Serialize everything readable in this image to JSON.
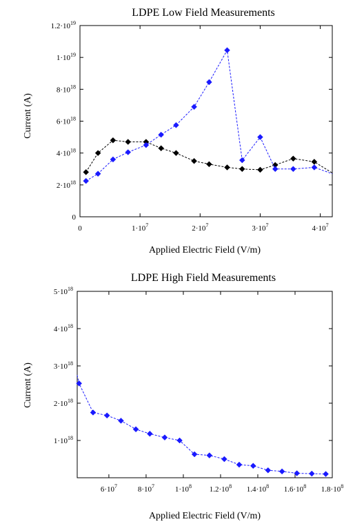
{
  "colors": {
    "black_series": "#000000",
    "blue_series": "#1a1aff"
  },
  "chart_data": [
    {
      "type": "scatter",
      "title": "LDPE Low Field Measurements",
      "xlabel": "Applied Electric Field (V/m)",
      "ylabel": "Current (A)",
      "xlim": [
        0,
        42000000
      ],
      "ylim": [
        0,
        12000000000000000000
      ],
      "marker": "diamond",
      "line_style": "dashed",
      "x_ticks": [
        {
          "value": 0,
          "mant": "0",
          "exp": ""
        },
        {
          "value": 10000000,
          "mant": "1·10",
          "exp": "7"
        },
        {
          "value": 20000000,
          "mant": "2·10",
          "exp": "7"
        },
        {
          "value": 30000000,
          "mant": "3·10",
          "exp": "7"
        },
        {
          "value": 40000000,
          "mant": "4·10",
          "exp": "7"
        }
      ],
      "y_ticks": [
        {
          "value": 0,
          "mant": "0",
          "exp": ""
        },
        {
          "value": 2000000000000000000,
          "mant": "2·10",
          "exp": "18"
        },
        {
          "value": 4000000000000000000,
          "mant": "4·10",
          "exp": "18"
        },
        {
          "value": 6000000000000000000,
          "mant": "6·10",
          "exp": "18"
        },
        {
          "value": 8000000000000000000,
          "mant": "8·10",
          "exp": "18"
        },
        {
          "value": 10000000000000000000,
          "mant": "1·10",
          "exp": "19"
        },
        {
          "value": 12000000000000000000,
          "mant": "1.2·10",
          "exp": "19"
        }
      ],
      "series": [
        {
          "color": "#000000",
          "x": [
            1000000,
            3000000,
            5500000,
            8000000,
            11000000,
            13500000,
            16000000,
            19000000,
            21500000,
            24500000,
            27000000,
            30000000,
            32500000,
            35500000,
            39000000,
            42000000
          ],
          "y": [
            2800000000000000000,
            4000000000000000000,
            4800000000000000000,
            4700000000000000000,
            4700000000000000000,
            4300000000000000000,
            4000000000000000000,
            3500000000000000000,
            3300000000000000000,
            3100000000000000000,
            3000000000000000000,
            2950000000000000000,
            3250000000000000000,
            3650000000000000000,
            3450000000000000000,
            2750000000000000000
          ]
        },
        {
          "color": "#1a1aff",
          "x": [
            1000000,
            3000000,
            5500000,
            8000000,
            11000000,
            13500000,
            16000000,
            19000000,
            21500000,
            24500000,
            27000000,
            30000000,
            32500000,
            35500000,
            39000000,
            42000000
          ],
          "y": [
            2250000000000000000,
            2700000000000000000,
            3600000000000000000,
            4050000000000000000,
            4500000000000000000,
            5150000000000000000,
            5750000000000000000,
            6900000000000000000,
            8450000000000000000,
            10450000000000000000,
            3550000000000000000,
            5000000000000000000,
            3000000000000000000,
            3000000000000000000,
            3100000000000000000,
            2700000000000000000
          ]
        }
      ]
    },
    {
      "type": "scatter",
      "title": "LDPE High Field Measurements",
      "xlabel": "Applied Electric Field (V/m)",
      "ylabel": "Current (A)",
      "xlim": [
        43000000,
        180000000
      ],
      "ylim": [
        0,
        5000000000000000000
      ],
      "marker": "diamond",
      "line_style": "dashed",
      "x_ticks": [
        {
          "value": 60000000,
          "mant": "6·10",
          "exp": "7"
        },
        {
          "value": 80000000,
          "mant": "8·10",
          "exp": "7"
        },
        {
          "value": 100000000,
          "mant": "1·10",
          "exp": "8"
        },
        {
          "value": 120000000,
          "mant": "1.2·10",
          "exp": "8"
        },
        {
          "value": 140000000,
          "mant": "1.4·10",
          "exp": "8"
        },
        {
          "value": 160000000,
          "mant": "1.6·10",
          "exp": "8"
        },
        {
          "value": 180000000,
          "mant": "1.8·10",
          "exp": "8"
        }
      ],
      "y_ticks": [
        {
          "value": 1000000000000000000,
          "mant": "1·10",
          "exp": "18"
        },
        {
          "value": 2000000000000000000,
          "mant": "2·10",
          "exp": "18"
        },
        {
          "value": 3000000000000000000,
          "mant": "3·10",
          "exp": "18"
        },
        {
          "value": 4000000000000000000,
          "mant": "4·10",
          "exp": "18"
        },
        {
          "value": 5000000000000000000,
          "mant": "5·10",
          "exp": "18"
        }
      ],
      "series": [
        {
          "color": "#1a1aff",
          "x": [
            43000000,
            44000000,
            51500000,
            59000000,
            66500000,
            74500000,
            82000000,
            90000000,
            98000000,
            106000000,
            114000000,
            122000000,
            130000000,
            137500000,
            145500000,
            153000000,
            161000000,
            169000000,
            176500000
          ],
          "y": [
            2750000000000000000,
            2530000000000000000,
            1750000000000000000,
            1670000000000000000,
            1530000000000000000,
            1300000000000000000,
            1180000000000000000,
            1080000000000000000,
            1000000000000000000,
            630000000000000000,
            600000000000000000,
            500000000000000000,
            350000000000000000,
            320000000000000000,
            200000000000000000,
            170000000000000000,
            120000000000000000,
            110000000000000000,
            100000000000000000
          ]
        }
      ]
    }
  ]
}
